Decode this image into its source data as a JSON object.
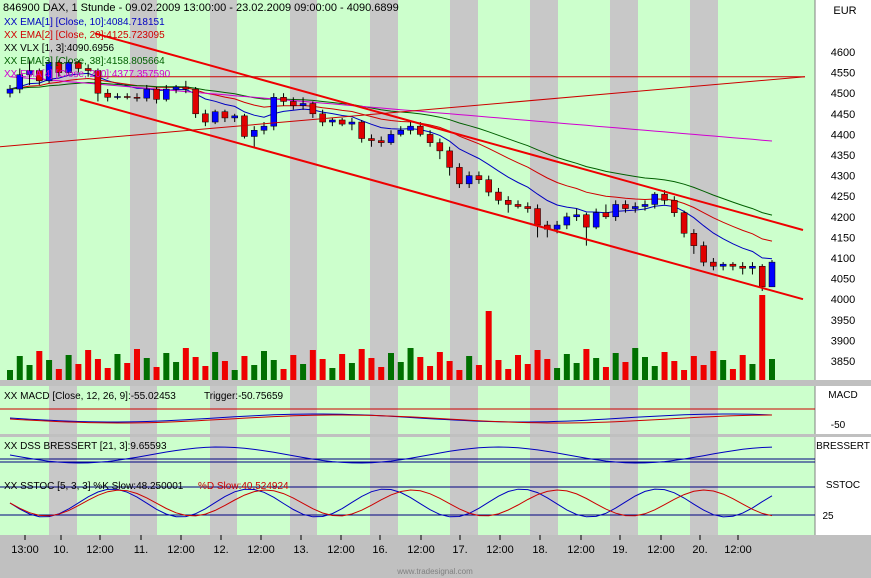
{
  "chart_data": {
    "type": "candlestick",
    "title": "846900 DAX, 1 Stunde - 09.02.2009 13:00:00 - 23.02.2009 09:00:00 - 4090.6899",
    "currency_label": "EUR",
    "price_ylim": [
      3800,
      4680
    ],
    "price_ticks": [
      4600,
      4550,
      4500,
      4450,
      4400,
      4350,
      4300,
      4250,
      4200,
      4150,
      4100,
      4050,
      4000,
      3950,
      3900,
      3850
    ],
    "x_tick_labels": [
      "13:00",
      "10.",
      "12:00",
      "11.",
      "12:00",
      "12.",
      "12:00",
      "13.",
      "12:00",
      "16.",
      "12:00",
      "17.",
      "12:00",
      "18.",
      "12:00",
      "19.",
      "12:00",
      "20.",
      "12:00"
    ],
    "legend": [
      {
        "text": "XX EMA[1] [Close, 10]:4084.718151",
        "color": "#0000c0"
      },
      {
        "text": "XX EMA[2] [Close, 20]:4125.723095",
        "color": "#d00000"
      },
      {
        "text": "XX VLX [1, 3]:4090.6956",
        "color": "#000000"
      },
      {
        "text": "XX EMA[3] [Close, 38]:4158.805664",
        "color": "#006000"
      },
      {
        "text": "XX EMA[4] [Close, 200]:4377.357590",
        "color": "#d000d0"
      }
    ],
    "candles": [
      [
        4500,
        4520,
        4490,
        4510
      ],
      [
        4510,
        4560,
        4500,
        4545
      ],
      [
        4545,
        4580,
        4520,
        4555
      ],
      [
        4555,
        4560,
        4520,
        4530
      ],
      [
        4530,
        4580,
        4525,
        4575
      ],
      [
        4575,
        4580,
        4540,
        4550
      ],
      [
        4550,
        4580,
        4545,
        4575
      ],
      [
        4575,
        4580,
        4550,
        4560
      ],
      [
        4560,
        4570,
        4540,
        4555
      ],
      [
        4555,
        4560,
        4480,
        4500
      ],
      [
        4500,
        4510,
        4480,
        4490
      ],
      [
        4490,
        4500,
        4485,
        4492
      ],
      [
        4492,
        4500,
        4485,
        4490
      ],
      [
        4490,
        4500,
        4480,
        4488
      ],
      [
        4488,
        4520,
        4480,
        4510
      ],
      [
        4510,
        4515,
        4475,
        4485
      ],
      [
        4485,
        4520,
        4480,
        4510
      ],
      [
        4510,
        4520,
        4500,
        4515
      ],
      [
        4515,
        4530,
        4500,
        4510
      ],
      [
        4510,
        4515,
        4440,
        4450
      ],
      [
        4450,
        4460,
        4420,
        4430
      ],
      [
        4430,
        4460,
        4425,
        4455
      ],
      [
        4455,
        4460,
        4430,
        4440
      ],
      [
        4440,
        4450,
        4430,
        4445
      ],
      [
        4445,
        4450,
        4390,
        4395
      ],
      [
        4395,
        4420,
        4370,
        4410
      ],
      [
        4410,
        4430,
        4400,
        4420
      ],
      [
        4420,
        4500,
        4410,
        4490
      ],
      [
        4490,
        4500,
        4470,
        4480
      ],
      [
        4480,
        4490,
        4460,
        4470
      ],
      [
        4470,
        4490,
        4460,
        4475
      ],
      [
        4475,
        4480,
        4440,
        4450
      ],
      [
        4450,
        4460,
        4420,
        4430
      ],
      [
        4430,
        4440,
        4420,
        4435
      ],
      [
        4435,
        4440,
        4420,
        4425
      ],
      [
        4425,
        4440,
        4410,
        4430
      ],
      [
        4430,
        4435,
        4380,
        4390
      ],
      [
        4390,
        4400,
        4370,
        4385
      ],
      [
        4385,
        4395,
        4370,
        4380
      ],
      [
        4380,
        4410,
        4375,
        4400
      ],
      [
        4400,
        4420,
        4395,
        4410
      ],
      [
        4410,
        4430,
        4400,
        4420
      ],
      [
        4420,
        4430,
        4395,
        4400
      ],
      [
        4400,
        4410,
        4370,
        4380
      ],
      [
        4380,
        4390,
        4340,
        4360
      ],
      [
        4360,
        4370,
        4300,
        4320
      ],
      [
        4320,
        4330,
        4270,
        4280
      ],
      [
        4280,
        4310,
        4270,
        4300
      ],
      [
        4300,
        4310,
        4280,
        4290
      ],
      [
        4290,
        4300,
        4250,
        4260
      ],
      [
        4260,
        4270,
        4230,
        4240
      ],
      [
        4240,
        4250,
        4210,
        4230
      ],
      [
        4230,
        4240,
        4220,
        4225
      ],
      [
        4225,
        4235,
        4210,
        4220
      ],
      [
        4220,
        4230,
        4150,
        4180
      ],
      [
        4180,
        4190,
        4150,
        4170
      ],
      [
        4170,
        4190,
        4160,
        4180
      ],
      [
        4180,
        4210,
        4170,
        4200
      ],
      [
        4200,
        4220,
        4190,
        4205
      ],
      [
        4205,
        4210,
        4130,
        4175
      ],
      [
        4175,
        4220,
        4170,
        4210
      ],
      [
        4210,
        4230,
        4195,
        4200
      ],
      [
        4200,
        4240,
        4190,
        4230
      ],
      [
        4230,
        4240,
        4210,
        4220
      ],
      [
        4220,
        4235,
        4210,
        4225
      ],
      [
        4225,
        4240,
        4215,
        4230
      ],
      [
        4230,
        4260,
        4220,
        4255
      ],
      [
        4255,
        4265,
        4230,
        4240
      ],
      [
        4240,
        4250,
        4200,
        4210
      ],
      [
        4210,
        4215,
        4150,
        4160
      ],
      [
        4160,
        4170,
        4110,
        4130
      ],
      [
        4130,
        4140,
        4080,
        4090
      ],
      [
        4090,
        4100,
        4070,
        4080
      ],
      [
        4080,
        4090,
        4070,
        4085
      ],
      [
        4085,
        4090,
        4070,
        4080
      ],
      [
        4080,
        4090,
        4060,
        4075
      ],
      [
        4075,
        4090,
        4060,
        4080
      ],
      [
        4080,
        4085,
        4020,
        4030
      ],
      [
        4030,
        4095,
        4030,
        4090
      ]
    ],
    "volume_bar_values_approx": "hourly volume in lower price panel (relative heights)",
    "indicators": [
      {
        "name": "XX MACD [Close, 12, 26, 9]:-55.02453",
        "extra": "Trigger:-50.75659",
        "axis_label": "MACD",
        "ticks": [
          "-50"
        ]
      },
      {
        "name": "XX DSS BRESSERT [21, 3]:9.65593",
        "axis_label": "BRESSERT",
        "ticks": []
      },
      {
        "name": "XX SSTOC [5, 3, 3] %K Slow:48.250001",
        "extra": "%D Slow:40.524924",
        "axis_label": "SSTOC",
        "ticks": [
          "25"
        ]
      }
    ],
    "footer": "www.tradesignal.com"
  }
}
